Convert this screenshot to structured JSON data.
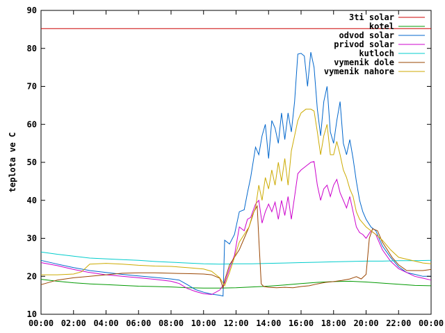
{
  "chart_data": {
    "type": "line",
    "title": "",
    "xlabel": "",
    "ylabel": "teplota ve C",
    "xlim": [
      0,
      24
    ],
    "ylim": [
      10,
      90
    ],
    "grid": false,
    "legend_position": "top-right",
    "x_ticks": [
      {
        "x": 0,
        "label": "00:00"
      },
      {
        "x": 2,
        "label": "02:00"
      },
      {
        "x": 4,
        "label": "04:00"
      },
      {
        "x": 6,
        "label": "06:00"
      },
      {
        "x": 8,
        "label": "08:00"
      },
      {
        "x": 10,
        "label": "10:00"
      },
      {
        "x": 12,
        "label": "12:00"
      },
      {
        "x": 14,
        "label": "14:00"
      },
      {
        "x": 16,
        "label": "16:00"
      },
      {
        "x": 18,
        "label": "18:00"
      },
      {
        "x": 20,
        "label": "20:00"
      },
      {
        "x": 22,
        "label": "22:00"
      },
      {
        "x": 24,
        "label": "00:00"
      }
    ],
    "y_ticks": [
      {
        "y": 10,
        "label": "10"
      },
      {
        "y": 20,
        "label": "20"
      },
      {
        "y": 30,
        "label": "30"
      },
      {
        "y": 40,
        "label": "40"
      },
      {
        "y": 50,
        "label": "50"
      },
      {
        "y": 60,
        "label": "60"
      },
      {
        "y": 70,
        "label": "70"
      },
      {
        "y": 80,
        "label": "80"
      },
      {
        "y": 90,
        "label": "90"
      }
    ],
    "series": [
      {
        "name": "3ti solar",
        "color": "#cc0000",
        "points": [
          [
            0,
            85.2
          ],
          [
            24,
            85.2
          ]
        ]
      },
      {
        "name": "kotel",
        "color": "#009900",
        "points": [
          [
            0,
            19.2
          ],
          [
            1,
            18.7
          ],
          [
            2,
            18.3
          ],
          [
            3,
            18.0
          ],
          [
            4,
            17.8
          ],
          [
            5,
            17.6
          ],
          [
            6,
            17.4
          ],
          [
            7,
            17.3
          ],
          [
            8,
            17.2
          ],
          [
            9,
            17.0
          ],
          [
            10,
            16.9
          ],
          [
            11,
            16.9
          ],
          [
            12,
            17.0
          ],
          [
            13,
            17.2
          ],
          [
            14,
            17.4
          ],
          [
            15,
            17.7
          ],
          [
            16,
            18.1
          ],
          [
            17,
            18.4
          ],
          [
            18,
            18.6
          ],
          [
            19,
            18.7
          ],
          [
            20,
            18.5
          ],
          [
            21,
            18.2
          ],
          [
            22,
            17.9
          ],
          [
            23,
            17.6
          ],
          [
            24,
            17.5
          ]
        ]
      },
      {
        "name": "odvod solar",
        "color": "#0066cc",
        "points": [
          [
            0,
            24.2
          ],
          [
            1,
            23.2
          ],
          [
            2,
            22.3
          ],
          [
            3,
            21.5
          ],
          [
            4,
            21.0
          ],
          [
            5,
            20.5
          ],
          [
            6,
            20.1
          ],
          [
            7,
            19.7
          ],
          [
            8,
            19.3
          ],
          [
            8.5,
            19.0
          ],
          [
            9,
            17.8
          ],
          [
            9.5,
            16.5
          ],
          [
            10,
            15.8
          ],
          [
            10.5,
            15.3
          ],
          [
            11,
            15.0
          ],
          [
            11.2,
            14.8
          ],
          [
            11.3,
            29.5
          ],
          [
            11.6,
            28.5
          ],
          [
            11.9,
            31
          ],
          [
            12.2,
            37
          ],
          [
            12.5,
            37.5
          ],
          [
            12.7,
            42
          ],
          [
            12.9,
            46
          ],
          [
            13.2,
            54
          ],
          [
            13.4,
            52
          ],
          [
            13.6,
            57
          ],
          [
            13.8,
            60
          ],
          [
            14.0,
            51
          ],
          [
            14.2,
            61
          ],
          [
            14.4,
            59
          ],
          [
            14.6,
            55
          ],
          [
            14.8,
            63
          ],
          [
            15.0,
            56
          ],
          [
            15.2,
            63
          ],
          [
            15.4,
            58
          ],
          [
            15.6,
            66
          ],
          [
            15.8,
            78.5
          ],
          [
            16.0,
            78.7
          ],
          [
            16.2,
            78.0
          ],
          [
            16.4,
            70
          ],
          [
            16.6,
            79
          ],
          [
            16.8,
            75
          ],
          [
            17.0,
            64
          ],
          [
            17.2,
            57
          ],
          [
            17.4,
            66
          ],
          [
            17.6,
            70
          ],
          [
            17.8,
            58
          ],
          [
            18.0,
            55
          ],
          [
            18.2,
            61
          ],
          [
            18.4,
            66
          ],
          [
            18.6,
            55
          ],
          [
            18.8,
            52
          ],
          [
            19.0,
            56
          ],
          [
            19.2,
            51
          ],
          [
            19.4,
            45
          ],
          [
            19.6,
            40
          ],
          [
            19.8,
            37
          ],
          [
            20.0,
            35
          ],
          [
            20.3,
            33
          ],
          [
            20.6,
            32
          ],
          [
            21.0,
            28
          ],
          [
            21.5,
            25
          ],
          [
            22,
            22.5
          ],
          [
            22.5,
            21
          ],
          [
            23,
            20.5
          ],
          [
            23.5,
            20
          ],
          [
            24,
            20.0
          ]
        ]
      },
      {
        "name": "privod solar",
        "color": "#cc00cc",
        "points": [
          [
            0,
            23.6
          ],
          [
            1,
            22.8
          ],
          [
            2,
            21.8
          ],
          [
            3,
            21.0
          ],
          [
            4,
            20.4
          ],
          [
            5,
            20.0
          ],
          [
            6,
            19.6
          ],
          [
            7,
            19.2
          ],
          [
            8,
            18.7
          ],
          [
            8.5,
            18.1
          ],
          [
            9,
            16.8
          ],
          [
            9.5,
            16.0
          ],
          [
            10,
            15.4
          ],
          [
            10.5,
            15.2
          ],
          [
            11,
            16.4
          ],
          [
            11.3,
            18.2
          ],
          [
            11.6,
            22
          ],
          [
            11.9,
            25.5
          ],
          [
            12.2,
            33
          ],
          [
            12.5,
            32
          ],
          [
            12.7,
            35
          ],
          [
            12.9,
            35.5
          ],
          [
            13.2,
            39
          ],
          [
            13.4,
            40
          ],
          [
            13.6,
            34
          ],
          [
            13.8,
            37
          ],
          [
            14.0,
            39
          ],
          [
            14.2,
            37
          ],
          [
            14.4,
            39.5
          ],
          [
            14.6,
            35
          ],
          [
            14.8,
            40
          ],
          [
            15.0,
            36
          ],
          [
            15.2,
            41
          ],
          [
            15.4,
            35
          ],
          [
            15.6,
            41
          ],
          [
            15.8,
            47
          ],
          [
            16.0,
            48
          ],
          [
            16.3,
            49
          ],
          [
            16.6,
            50
          ],
          [
            16.8,
            50.2
          ],
          [
            17.0,
            44
          ],
          [
            17.2,
            40
          ],
          [
            17.4,
            43
          ],
          [
            17.6,
            44
          ],
          [
            17.8,
            41
          ],
          [
            18.0,
            44
          ],
          [
            18.2,
            45.5
          ],
          [
            18.4,
            42
          ],
          [
            18.6,
            40
          ],
          [
            18.8,
            38
          ],
          [
            19.0,
            41
          ],
          [
            19.2,
            37
          ],
          [
            19.4,
            33
          ],
          [
            19.6,
            31.5
          ],
          [
            19.8,
            31
          ],
          [
            20.0,
            30
          ],
          [
            20.3,
            32
          ],
          [
            20.6,
            31
          ],
          [
            21.0,
            27
          ],
          [
            21.5,
            24
          ],
          [
            22,
            22
          ],
          [
            22.5,
            21
          ],
          [
            23,
            20
          ],
          [
            23.5,
            19.5
          ],
          [
            24,
            19.0
          ]
        ]
      },
      {
        "name": "kutloch",
        "color": "#00cccc",
        "points": [
          [
            0,
            26.4
          ],
          [
            1,
            25.8
          ],
          [
            2,
            25.3
          ],
          [
            3,
            24.8
          ],
          [
            4,
            24.6
          ],
          [
            5,
            24.4
          ],
          [
            6,
            24.2
          ],
          [
            7,
            23.9
          ],
          [
            8,
            23.7
          ],
          [
            9,
            23.5
          ],
          [
            10,
            23.3
          ],
          [
            11,
            23.2
          ],
          [
            12,
            23.3
          ],
          [
            13,
            23.3
          ],
          [
            14,
            23.4
          ],
          [
            15,
            23.5
          ],
          [
            16,
            23.6
          ],
          [
            17,
            23.7
          ],
          [
            18,
            23.8
          ],
          [
            19,
            23.9
          ],
          [
            20,
            24.0
          ],
          [
            21,
            24.0
          ],
          [
            22,
            24.1
          ],
          [
            23,
            24.1
          ],
          [
            24,
            24.2
          ]
        ]
      },
      {
        "name": "vymenik dole",
        "color": "#994400",
        "points": [
          [
            0,
            17.8
          ],
          [
            1,
            19.0
          ],
          [
            2,
            19.6
          ],
          [
            3,
            20.0
          ],
          [
            4,
            20.4
          ],
          [
            5,
            20.8
          ],
          [
            6,
            20.9
          ],
          [
            7,
            20.9
          ],
          [
            8,
            20.8
          ],
          [
            9,
            20.7
          ],
          [
            10,
            20.6
          ],
          [
            10.5,
            20.4
          ],
          [
            11,
            19.5
          ],
          [
            11.2,
            17.0
          ],
          [
            11.3,
            19
          ],
          [
            11.6,
            23
          ],
          [
            11.9,
            25
          ],
          [
            12.2,
            27
          ],
          [
            12.5,
            30
          ],
          [
            12.8,
            33
          ],
          [
            13.1,
            37
          ],
          [
            13.3,
            38.5
          ],
          [
            13.4,
            30
          ],
          [
            13.55,
            18
          ],
          [
            13.7,
            17.3
          ],
          [
            14.0,
            17.1
          ],
          [
            14.5,
            17.0
          ],
          [
            15.0,
            17.1
          ],
          [
            15.5,
            17.0
          ],
          [
            16.0,
            17.3
          ],
          [
            16.5,
            17.5
          ],
          [
            17.0,
            18.0
          ],
          [
            17.5,
            18.4
          ],
          [
            18.0,
            18.6
          ],
          [
            18.5,
            18.9
          ],
          [
            19.0,
            19.3
          ],
          [
            19.4,
            19.9
          ],
          [
            19.7,
            19.3
          ],
          [
            20.0,
            20.5
          ],
          [
            20.2,
            30
          ],
          [
            20.4,
            32.5
          ],
          [
            20.7,
            32
          ],
          [
            21.0,
            29
          ],
          [
            21.3,
            27
          ],
          [
            21.6,
            25
          ],
          [
            22,
            23
          ],
          [
            22.5,
            21.5
          ],
          [
            23,
            21.5
          ],
          [
            23.5,
            21.5
          ],
          [
            24,
            21.8
          ]
        ]
      },
      {
        "name": "vymenik nahore",
        "color": "#ccaa00",
        "points": [
          [
            0,
            20.4
          ],
          [
            1,
            20.4
          ],
          [
            2,
            20.6
          ],
          [
            2.5,
            21.2
          ],
          [
            3,
            23.2
          ],
          [
            4,
            23.4
          ],
          [
            5,
            23.2
          ],
          [
            6,
            22.9
          ],
          [
            7,
            22.7
          ],
          [
            8,
            22.6
          ],
          [
            9,
            22.3
          ],
          [
            10,
            21.9
          ],
          [
            10.5,
            21.3
          ],
          [
            11,
            19.6
          ],
          [
            11.3,
            17.5
          ],
          [
            11.6,
            21
          ],
          [
            11.9,
            25
          ],
          [
            12.2,
            29
          ],
          [
            12.5,
            31
          ],
          [
            12.8,
            33
          ],
          [
            13.0,
            36
          ],
          [
            13.2,
            38
          ],
          [
            13.4,
            44
          ],
          [
            13.6,
            40
          ],
          [
            13.8,
            46
          ],
          [
            14.0,
            43
          ],
          [
            14.2,
            48
          ],
          [
            14.4,
            44
          ],
          [
            14.6,
            50
          ],
          [
            14.8,
            45
          ],
          [
            15.0,
            51
          ],
          [
            15.2,
            44
          ],
          [
            15.4,
            53
          ],
          [
            15.6,
            57
          ],
          [
            15.8,
            61
          ],
          [
            16.0,
            63
          ],
          [
            16.3,
            64
          ],
          [
            16.6,
            64
          ],
          [
            16.8,
            63.5
          ],
          [
            17.0,
            58
          ],
          [
            17.2,
            52
          ],
          [
            17.4,
            57
          ],
          [
            17.6,
            60
          ],
          [
            17.8,
            52
          ],
          [
            18.0,
            52
          ],
          [
            18.2,
            55.5
          ],
          [
            18.4,
            52
          ],
          [
            18.6,
            48
          ],
          [
            18.8,
            46
          ],
          [
            19.0,
            43
          ],
          [
            19.2,
            41
          ],
          [
            19.4,
            37
          ],
          [
            19.6,
            35
          ],
          [
            19.8,
            34
          ],
          [
            20.0,
            33
          ],
          [
            20.3,
            32
          ],
          [
            20.6,
            31
          ],
          [
            21.0,
            29.5
          ],
          [
            21.5,
            27
          ],
          [
            22,
            25
          ],
          [
            22.5,
            24.5
          ],
          [
            23,
            24
          ],
          [
            23.5,
            23.5
          ],
          [
            24,
            23.3
          ]
        ]
      }
    ]
  }
}
